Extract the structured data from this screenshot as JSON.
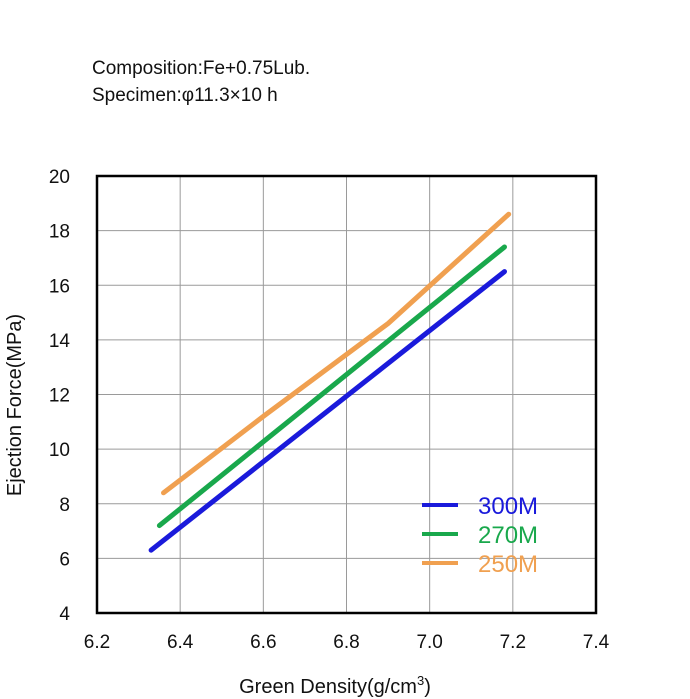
{
  "notes": {
    "composition": "Composition:Fe+0.75Lub.",
    "specimen": "Specimen:φ11.3×10 h"
  },
  "chart_data": {
    "type": "line",
    "xlabel_main": "Green Density(g/cm",
    "xlabel_sup": "3",
    "xlabel_close": ")",
    "ylabel": "Ejection Force(MPa)",
    "xlim": [
      6.2,
      7.4
    ],
    "ylim": [
      4,
      20
    ],
    "x_ticks": [
      "6.2",
      "6.4",
      "6.6",
      "6.8",
      "7.0",
      "7.2",
      "7.4"
    ],
    "y_ticks": [
      "4",
      "6",
      "8",
      "10",
      "12",
      "14",
      "16",
      "18",
      "20"
    ],
    "grid": true,
    "legend_position": "bottom-right",
    "series": [
      {
        "name": "300M",
        "color": "#1a1adb",
        "x": [
          6.33,
          7.18
        ],
        "y": [
          6.3,
          16.5
        ]
      },
      {
        "name": "270M",
        "color": "#19a84c",
        "x": [
          6.35,
          7.18
        ],
        "y": [
          7.2,
          17.4
        ]
      },
      {
        "name": "250M",
        "color": "#f0a050",
        "x": [
          6.36,
          6.6,
          6.9,
          7.19
        ],
        "y": [
          8.4,
          11.2,
          14.6,
          18.6
        ]
      }
    ]
  }
}
